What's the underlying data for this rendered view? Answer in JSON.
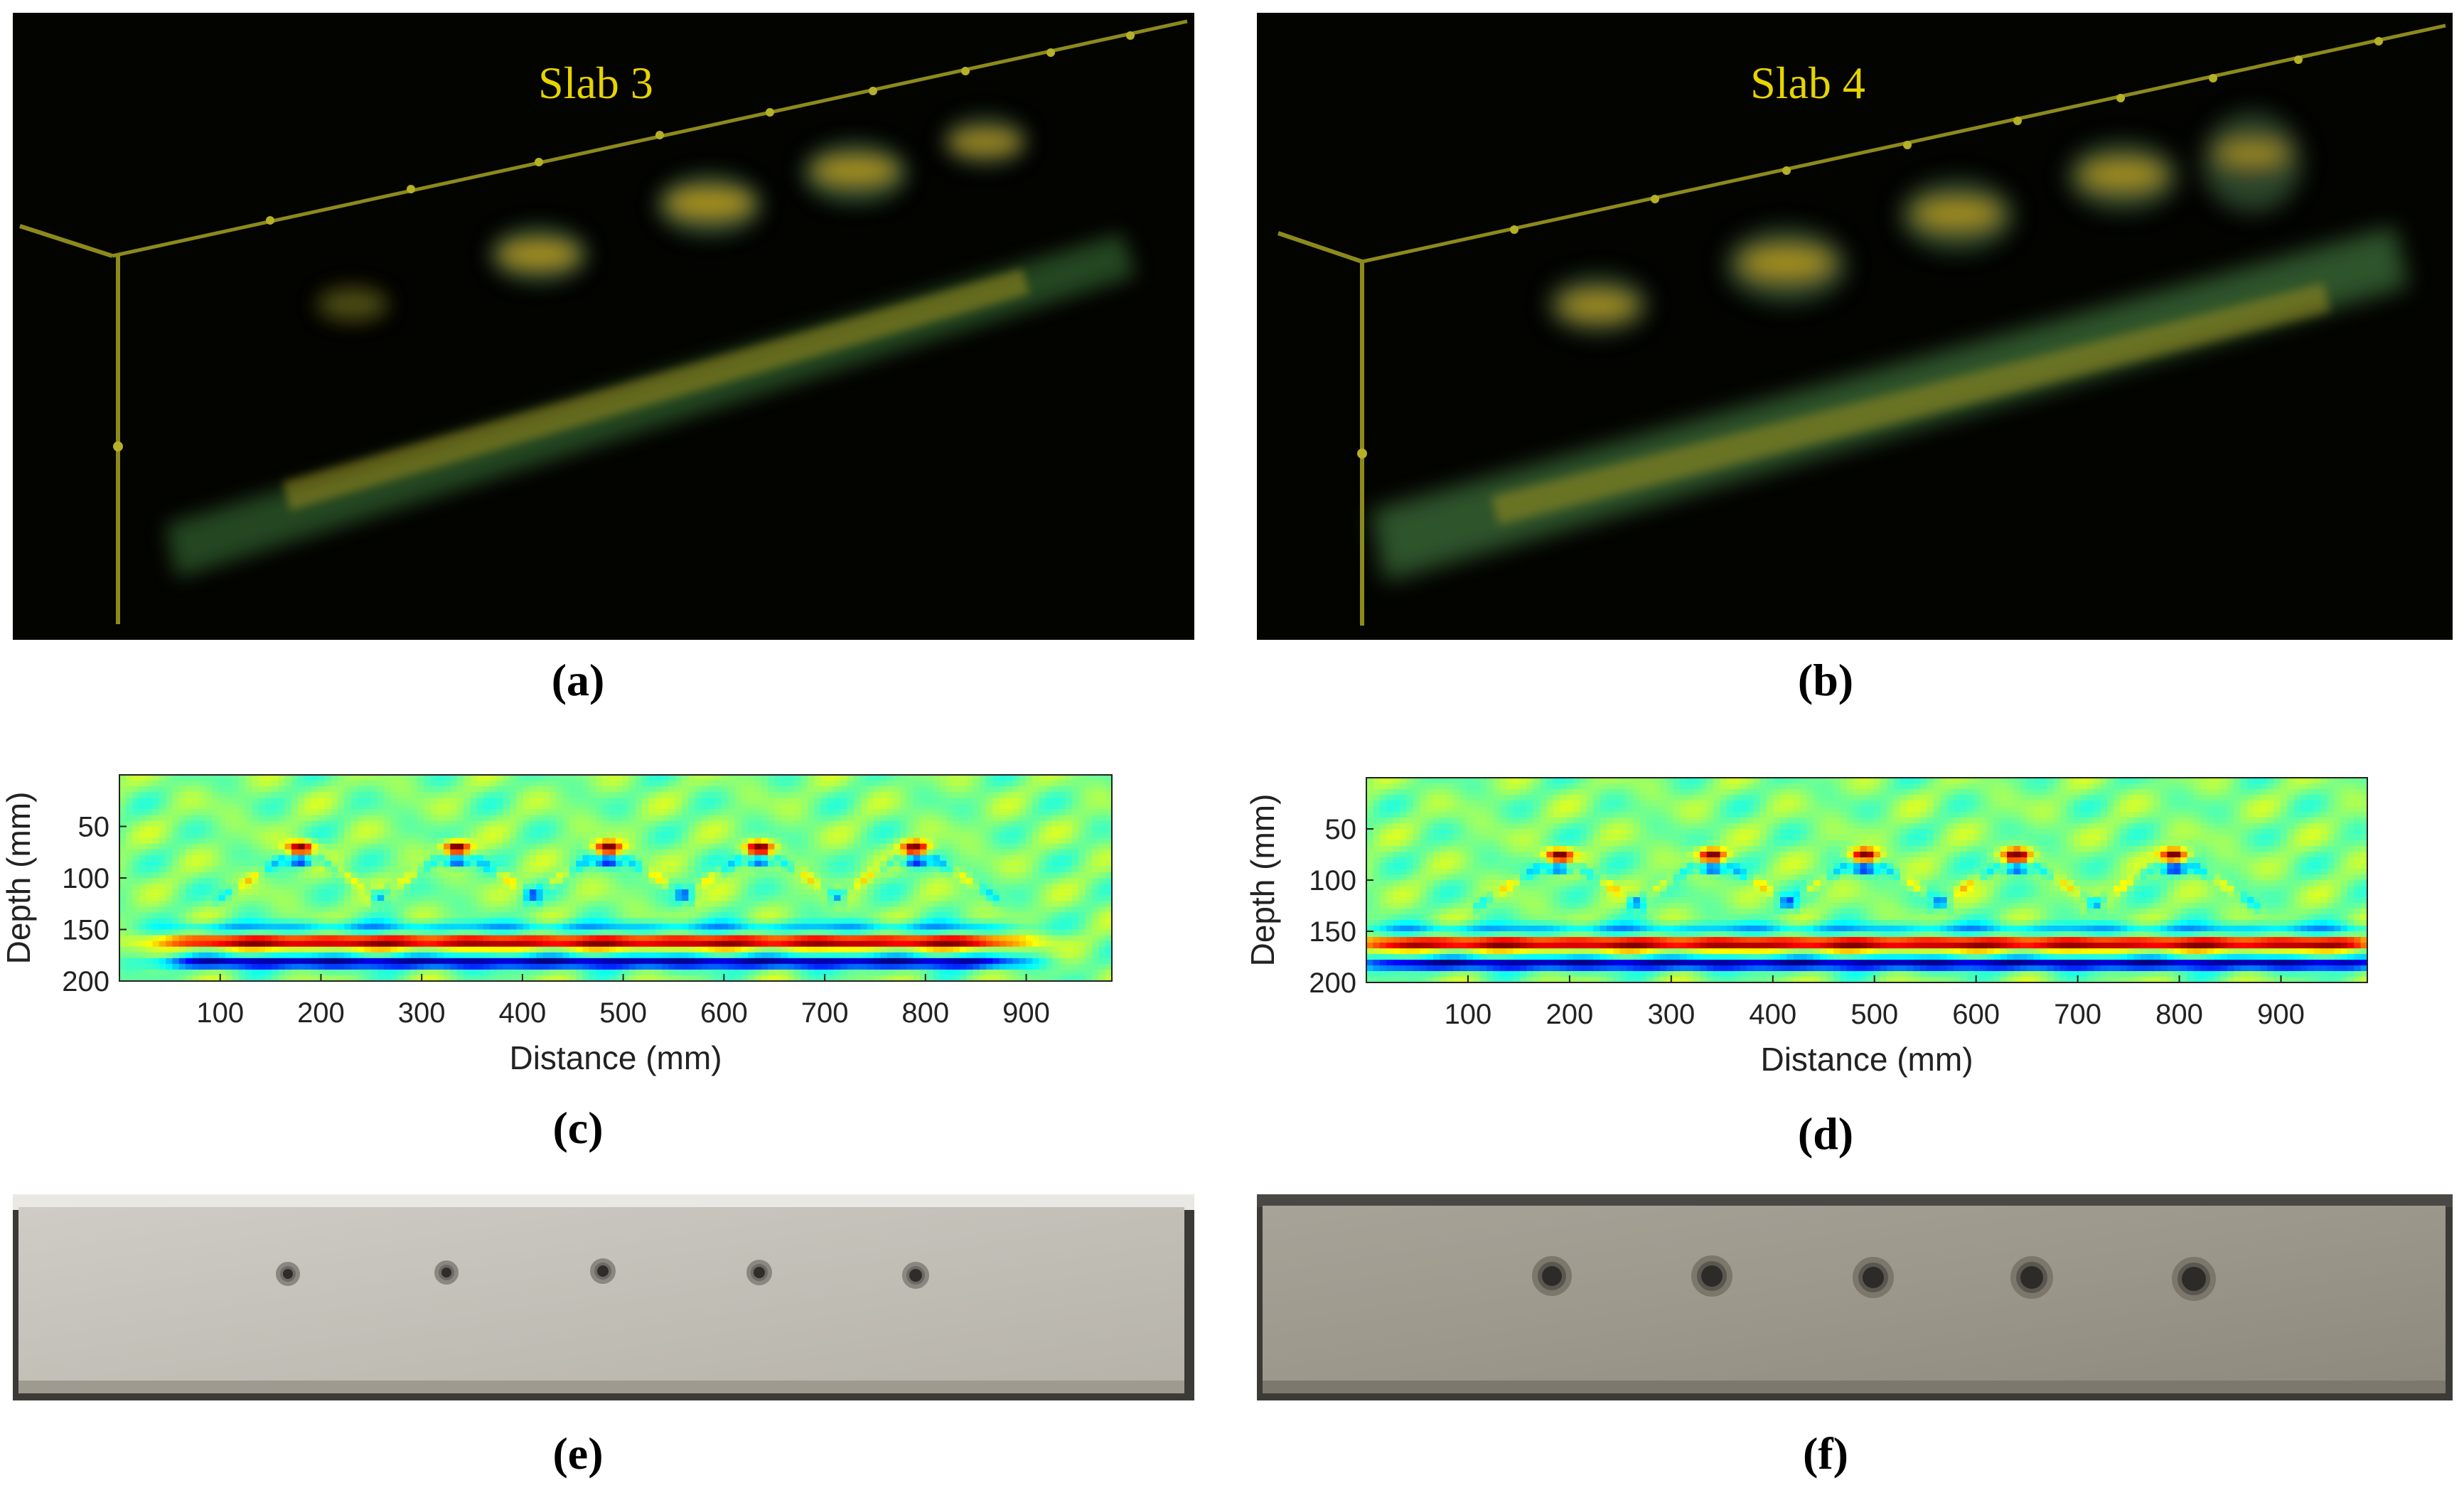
{
  "figure": {
    "panels": [
      {
        "id": "a",
        "caption": "(a)",
        "title": "Slab 3"
      },
      {
        "id": "b",
        "caption": "(b)",
        "title": "Slab 4"
      },
      {
        "id": "c",
        "caption": "(c)"
      },
      {
        "id": "d",
        "caption": "(d)"
      },
      {
        "id": "e",
        "caption": "(e)"
      },
      {
        "id": "f",
        "caption": "(f)"
      }
    ],
    "colors": {
      "title_yellow": "#e6d400",
      "axis_yellow": "#8d8a1c",
      "volume_bg": "#030300",
      "concrete_light": "#c9c7c1",
      "concrete_dark": "#9a968c"
    }
  },
  "chart_data": [
    {
      "panel": "c",
      "type": "heatmap",
      "xlabel": "Distance (mm)",
      "ylabel": "Depth (mm)",
      "xticks": [
        100,
        200,
        300,
        400,
        500,
        600,
        700,
        800,
        900
      ],
      "yticks": [
        50,
        100,
        150,
        200
      ],
      "xlim": [
        0,
        985
      ],
      "ylim": [
        200,
        0
      ],
      "colormap": "jet",
      "reflector_depth_mm": [
        162,
        182
      ],
      "reflector_x_range_mm": [
        100,
        840
      ],
      "hyperbola_apex_x_mm": [
        180,
        335,
        485,
        635,
        790
      ],
      "hyperbola_apex_depth_mm": 70
    },
    {
      "panel": "d",
      "type": "heatmap",
      "xlabel": "Distance (mm)",
      "ylabel": "Depth (mm)",
      "xticks": [
        100,
        200,
        300,
        400,
        500,
        600,
        700,
        800,
        900
      ],
      "yticks": [
        50,
        100,
        150,
        200
      ],
      "xlim": [
        0,
        985
      ],
      "ylim": [
        200,
        0
      ],
      "colormap": "jet",
      "reflector_depth_mm": [
        162,
        182
      ],
      "reflector_x_range_mm": [
        50,
        950
      ],
      "hyperbola_apex_x_mm": [
        190,
        340,
        490,
        640,
        795
      ],
      "hyperbola_apex_depth_mm": 75
    }
  ]
}
